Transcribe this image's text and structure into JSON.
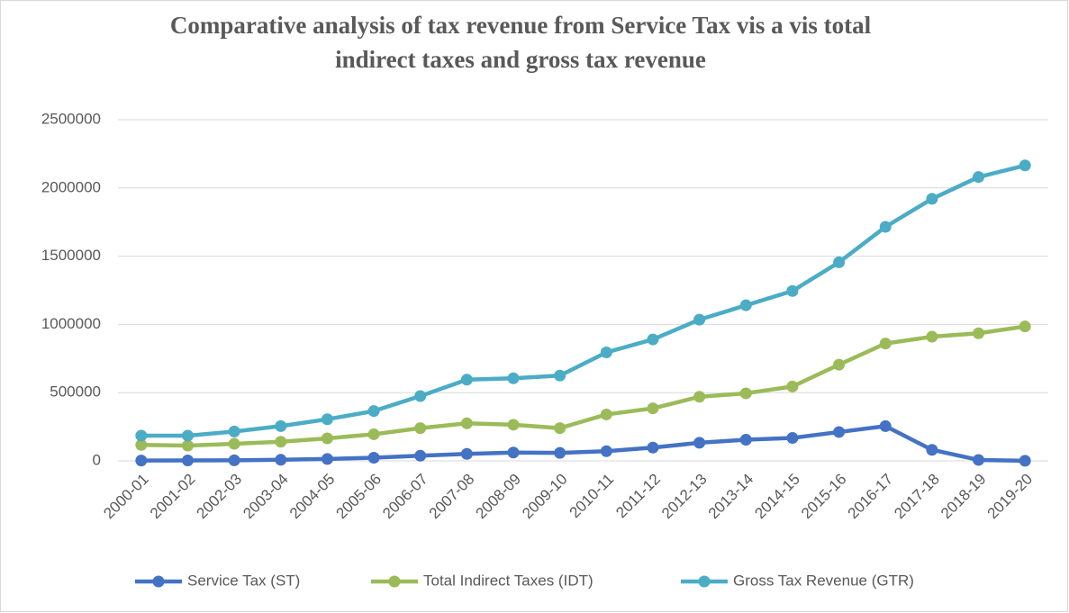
{
  "chart_data": {
    "type": "line",
    "title": [
      "Comparative analysis of tax revenue from Service Tax vis a vis total",
      "indirect taxes and gross tax revenue"
    ],
    "categories": [
      "2000-01",
      "2001-02",
      "2002-03",
      "2003-04",
      "2004-05",
      "2005-06",
      "2006-07",
      "2007-08",
      "2008-09",
      "2009-10",
      "2010-11",
      "2011-12",
      "2012-13",
      "2013-14",
      "2014-15",
      "2015-16",
      "2016-17",
      "2017-18",
      "2018-19",
      "2019-20"
    ],
    "series": [
      {
        "name": "Service Tax (ST)",
        "color": "#4472c4",
        "values": [
          2600,
          3300,
          4100,
          7900,
          14200,
          23000,
          37600,
          51300,
          60900,
          58400,
          71000,
          97500,
          132600,
          154800,
          167900,
          211400,
          254500,
          81000,
          7000,
          1000
        ]
      },
      {
        "name": "Total Indirect Taxes (IDT)",
        "color": "#9bbb59",
        "values": [
          117000,
          112000,
          125000,
          140000,
          165000,
          195000,
          240000,
          275000,
          265000,
          240000,
          340000,
          385000,
          470000,
          495000,
          545000,
          705000,
          860000,
          910000,
          935000,
          985000
        ]
      },
      {
        "name": "Gross Tax Revenue (GTR)",
        "color": "#4bacc6",
        "values": [
          185000,
          185000,
          215000,
          255000,
          305000,
          365000,
          475000,
          595000,
          605000,
          625000,
          795000,
          890000,
          1035000,
          1140000,
          1245000,
          1455000,
          1715000,
          1920000,
          2080000,
          2165000
        ]
      }
    ],
    "ylim": [
      0,
      2500000
    ],
    "yticks": [
      0,
      500000,
      1000000,
      1500000,
      2000000,
      2500000
    ],
    "grid": true,
    "legend": "bottom"
  }
}
